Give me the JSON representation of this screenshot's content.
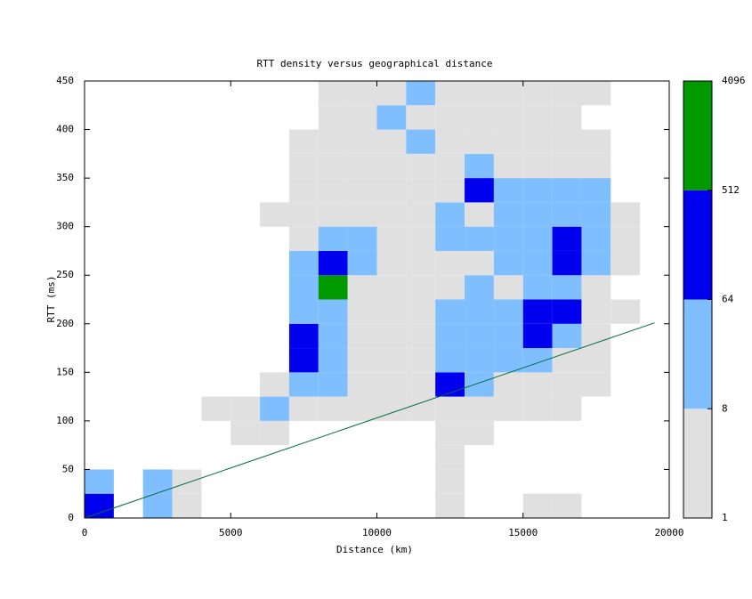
{
  "chart_data": {
    "type": "heatmap",
    "title": "RTT density versus geographical distance",
    "x_label": "Distance (km)",
    "y_label": "RTT (ms)",
    "xlim": [
      0,
      20000
    ],
    "ylim": [
      0,
      450
    ],
    "xticks": [
      0,
      5000,
      10000,
      15000,
      20000
    ],
    "yticks": [
      0,
      50,
      100,
      150,
      200,
      250,
      300,
      350,
      400,
      450
    ],
    "x": [
      500,
      1500,
      2500,
      3500,
      4500,
      5500,
      6500,
      7500,
      8500,
      9500,
      10500,
      11500,
      12500,
      13500,
      14500,
      15500,
      16500,
      17500,
      18500,
      19500
    ],
    "y": [
      12.5,
      37.5,
      62.5,
      87.5,
      112.5,
      137.5,
      162.5,
      187.5,
      212.5,
      237.5,
      262.5,
      287.5,
      312.5,
      337.5,
      362.5,
      387.5,
      412.5,
      437.5
    ],
    "z": [
      [
        100,
        0,
        20,
        3,
        0,
        0,
        0,
        0,
        0,
        0,
        0,
        0,
        3,
        0,
        0,
        3,
        3,
        0,
        0,
        0
      ],
      [
        20,
        0,
        20,
        3,
        0,
        0,
        0,
        0,
        0,
        0,
        0,
        0,
        3,
        0,
        0,
        0,
        0,
        0,
        0,
        0
      ],
      [
        0,
        0,
        0,
        0,
        0,
        0,
        0,
        0,
        0,
        0,
        0,
        0,
        3,
        0,
        0,
        0,
        0,
        0,
        0,
        0
      ],
      [
        0,
        0,
        0,
        0,
        0,
        3,
        3,
        0,
        0,
        0,
        0,
        0,
        3,
        3,
        0,
        0,
        0,
        0,
        0,
        0
      ],
      [
        0,
        0,
        0,
        0,
        3,
        3,
        20,
        3,
        3,
        3,
        3,
        3,
        3,
        3,
        3,
        3,
        3,
        0,
        0,
        0
      ],
      [
        0,
        0,
        0,
        0,
        0,
        0,
        3,
        20,
        20,
        3,
        3,
        3,
        100,
        20,
        3,
        3,
        3,
        3,
        0,
        0
      ],
      [
        0,
        0,
        0,
        0,
        0,
        0,
        0,
        100,
        20,
        3,
        3,
        3,
        20,
        20,
        20,
        20,
        3,
        3,
        0,
        0
      ],
      [
        0,
        0,
        0,
        0,
        0,
        0,
        0,
        100,
        20,
        3,
        3,
        3,
        20,
        20,
        20,
        100,
        20,
        3,
        0,
        0
      ],
      [
        0,
        0,
        0,
        0,
        0,
        0,
        0,
        20,
        20,
        3,
        3,
        3,
        20,
        20,
        20,
        100,
        100,
        3,
        3,
        0
      ],
      [
        0,
        0,
        0,
        0,
        0,
        0,
        0,
        20,
        600,
        3,
        3,
        3,
        3,
        20,
        3,
        20,
        20,
        3,
        0,
        0
      ],
      [
        0,
        0,
        0,
        0,
        0,
        0,
        0,
        20,
        100,
        20,
        3,
        3,
        3,
        3,
        20,
        20,
        100,
        20,
        3,
        0
      ],
      [
        0,
        0,
        0,
        0,
        0,
        0,
        0,
        3,
        20,
        20,
        3,
        3,
        20,
        20,
        20,
        20,
        100,
        20,
        3,
        0
      ],
      [
        0,
        0,
        0,
        0,
        0,
        0,
        3,
        3,
        3,
        3,
        3,
        3,
        20,
        3,
        20,
        20,
        20,
        20,
        3,
        0
      ],
      [
        0,
        0,
        0,
        0,
        0,
        0,
        0,
        3,
        3,
        3,
        3,
        3,
        3,
        100,
        20,
        20,
        20,
        20,
        0,
        0
      ],
      [
        0,
        0,
        0,
        0,
        0,
        0,
        0,
        3,
        3,
        3,
        3,
        3,
        3,
        20,
        3,
        3,
        3,
        3,
        0,
        0
      ],
      [
        0,
        0,
        0,
        0,
        0,
        0,
        0,
        3,
        3,
        3,
        3,
        20,
        3,
        3,
        3,
        3,
        3,
        3,
        0,
        0
      ],
      [
        0,
        0,
        0,
        0,
        0,
        0,
        0,
        0,
        3,
        3,
        20,
        3,
        3,
        3,
        3,
        3,
        3,
        0,
        0,
        0
      ],
      [
        0,
        0,
        0,
        0,
        0,
        0,
        0,
        0,
        3,
        3,
        3,
        20,
        3,
        3,
        3,
        3,
        3,
        3,
        0,
        0
      ]
    ],
    "cblim": [
      1,
      4096
    ],
    "cbticks": [
      1,
      8,
      64,
      512,
      4096
    ],
    "cb_log_scale": true,
    "colors": [
      "#e0e0e0",
      "#80bfff",
      "#0000ee",
      "#009900"
    ],
    "reference_line": {
      "x": [
        0,
        19500
      ],
      "y": [
        0,
        201
      ],
      "color": "#006b3c"
    }
  }
}
